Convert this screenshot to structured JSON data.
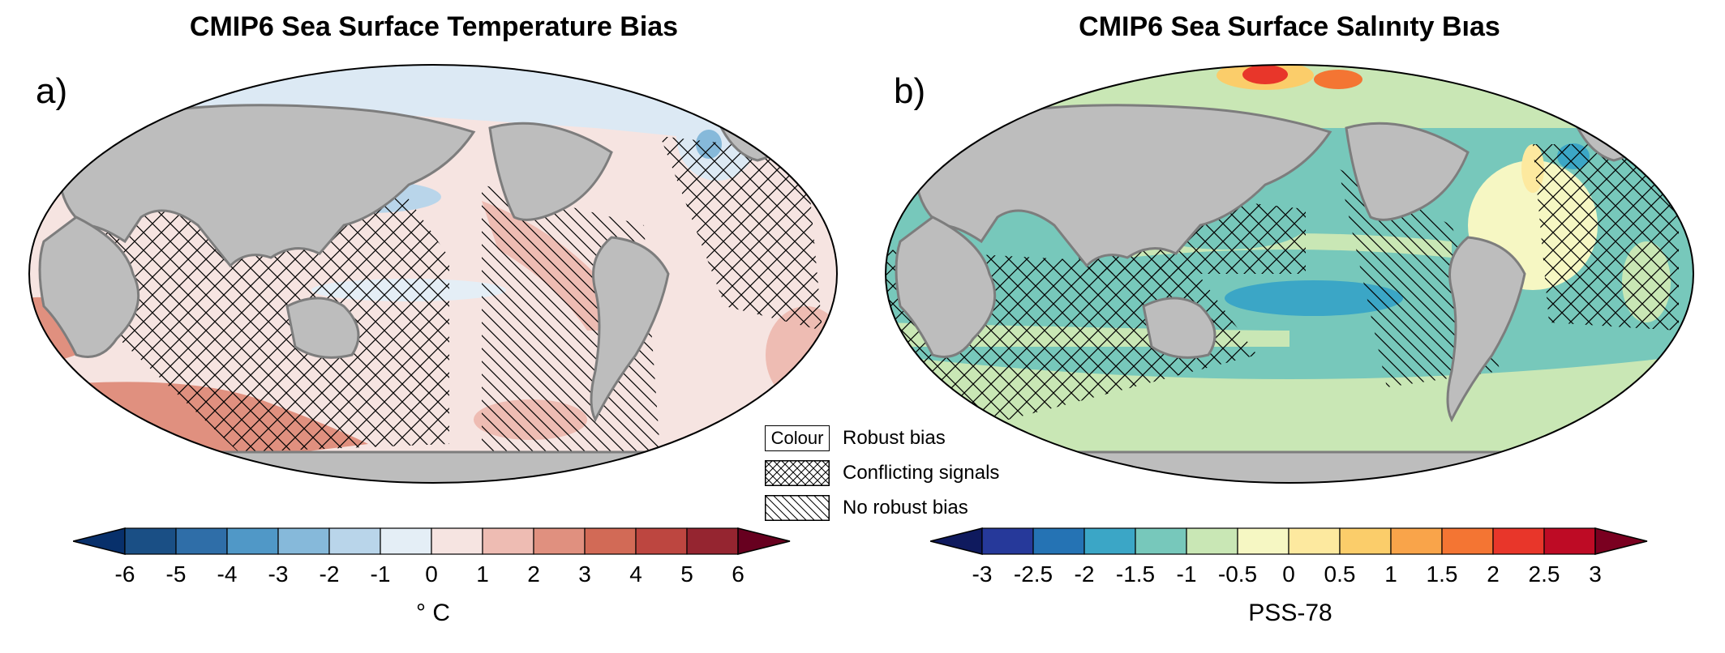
{
  "panel_a": {
    "title": "CMIP6 Sea Surface Temperature Bias",
    "label": "a)",
    "colorbar": {
      "ticks": [
        "-6",
        "-5",
        "-4",
        "-3",
        "-2",
        "-1",
        "0",
        "1",
        "2",
        "3",
        "4",
        "5",
        "6"
      ],
      "colors": [
        "#1a4f85",
        "#2f6ea8",
        "#5098c7",
        "#86b9da",
        "#b9d5ea",
        "#e4eef6",
        "#f6e4e1",
        "#eebcb3",
        "#e0907f",
        "#d26a56",
        "#bd4640",
        "#952530"
      ],
      "min_color": "#08306b",
      "max_color": "#67001f",
      "unit": "° C"
    }
  },
  "panel_b": {
    "title": "CMIP6 Sea Surface Salınıty Bıas",
    "label": "b)",
    "colorbar": {
      "ticks": [
        "-3",
        "-2.5",
        "-2",
        "-1.5",
        "-1",
        "-0.5",
        "0",
        "0.5",
        "1",
        "1.5",
        "2",
        "2.5",
        "3"
      ],
      "colors": [
        "#26399a",
        "#2573b4",
        "#3ba6c6",
        "#77c8bb",
        "#c9e7b5",
        "#f6f7c3",
        "#fde99f",
        "#fbcd6a",
        "#f9a44a",
        "#f47533",
        "#e8362a",
        "#be0b25"
      ],
      "min_color": "#0f1a5e",
      "max_color": "#7a0020",
      "unit": "PSS-78"
    }
  },
  "legend": {
    "colour_box": "Colour",
    "robust_bias": "Robust bias",
    "conflicting_signals": "Conflicting signals",
    "no_robust_bias": "No robust bias"
  }
}
